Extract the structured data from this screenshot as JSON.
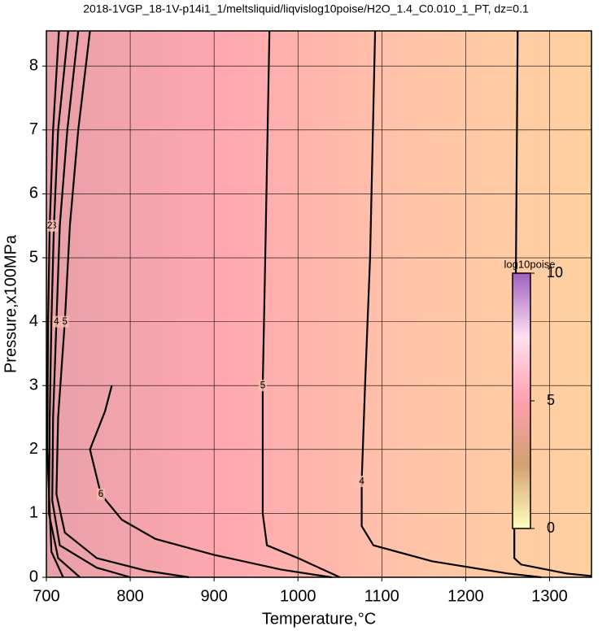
{
  "chart_data": {
    "type": "contour",
    "title": "2018-1VGP_18-1V-p14i1_1/meltsliquid/liqvislog10poise/H2O_1.4_C0.010_1_PT, dz=0.1",
    "xlabel": "Temperature,°C",
    "ylabel": "Pressure,x100MPa",
    "xlim": [
      700,
      1350
    ],
    "ylim": [
      0,
      8.55
    ],
    "xticks": [
      700,
      800,
      900,
      1000,
      1100,
      1200,
      1300
    ],
    "yticks": [
      0,
      1,
      2,
      3,
      4,
      5,
      6,
      7,
      8
    ],
    "grid": true,
    "contours": [
      {
        "level": 3,
        "x": [
          1262,
          1260,
          1258,
          1258,
          1266,
          1320,
          1350
        ],
        "y": [
          8.55,
          5,
          2,
          0.3,
          0.2,
          0.06,
          0.02
        ]
      },
      {
        "level": 4,
        "x": [
          1092,
          1086,
          1080,
          1076,
          1076,
          1090,
          1160,
          1250,
          1290
        ],
        "y": [
          8.55,
          5,
          3,
          1.5,
          0.8,
          0.5,
          0.25,
          0.06,
          0
        ]
      },
      {
        "level": 5,
        "x": [
          966,
          961,
          958,
          958,
          963,
          1000,
          1050
        ],
        "y": [
          8.55,
          5,
          3,
          1,
          0.5,
          0.3,
          0
        ]
      },
      {
        "level": 6,
        "x": [
          778,
          770,
          752,
          765,
          790,
          830,
          900,
          980,
          1040
        ],
        "y": [
          3.0,
          2.6,
          2.0,
          1.3,
          0.9,
          0.6,
          0.35,
          0.12,
          0
        ]
      },
      {
        "level": 5,
        "x": [
          752,
          738,
          728,
          722,
          714,
          712,
          722,
          760,
          820,
          870
        ],
        "y": [
          8.55,
          7,
          5.5,
          4,
          2.5,
          1.3,
          0.7,
          0.3,
          0.1,
          0
        ]
      },
      {
        "level": 4,
        "x": [
          738,
          725,
          716,
          712,
          708,
          707,
          716,
          760,
          800
        ],
        "y": [
          8.55,
          7,
          5.5,
          4,
          2.5,
          1.2,
          0.5,
          0.15,
          0
        ]
      },
      {
        "level": 3,
        "x": [
          726,
          714,
          709,
          706,
          704,
          703,
          714,
          740
        ],
        "y": [
          8.55,
          7,
          5.5,
          4,
          2.5,
          1.0,
          0.3,
          0
        ]
      },
      {
        "level": 2,
        "x": [
          715,
          708,
          704,
          702,
          701,
          706,
          720
        ],
        "y": [
          8.55,
          7,
          5.5,
          4,
          2.0,
          0.4,
          0
        ]
      }
    ],
    "colorbar": {
      "label": "log10poise",
      "lim": [
        0,
        10
      ],
      "ticks": [
        0,
        5,
        10
      ],
      "colors": [
        "#ffffc0",
        "#d2a070",
        "#ffa0b0",
        "#ffe0f0",
        "#a060c0"
      ]
    },
    "field_colors": [
      "#e8a0a8",
      "#ffa8b0",
      "#ffc4a8",
      "#ffd0a0"
    ]
  }
}
